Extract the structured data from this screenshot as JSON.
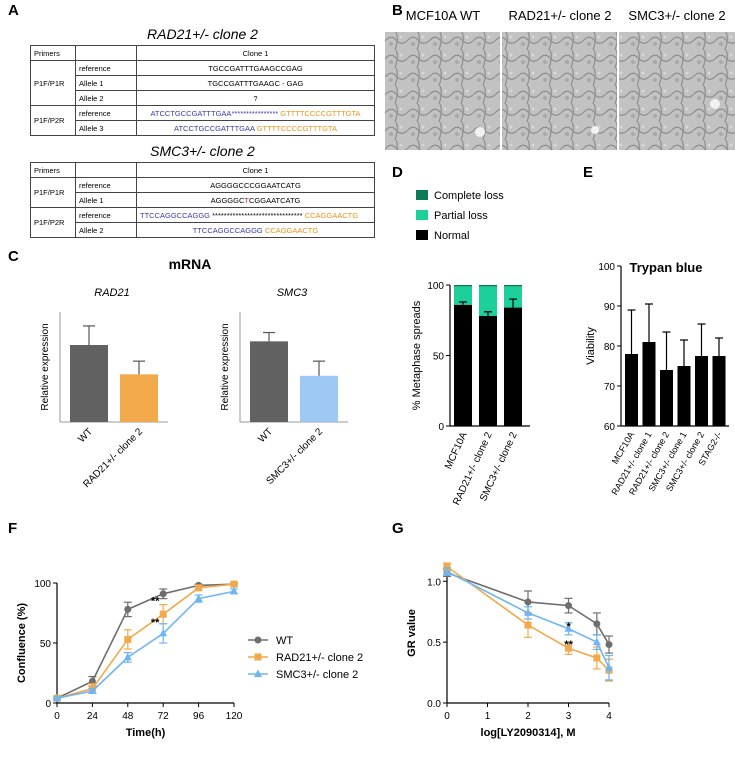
{
  "panels": {
    "A": "A",
    "B": "B",
    "C": "C",
    "D": "D",
    "E": "E",
    "F": "F",
    "G": "G"
  },
  "panelA": {
    "table1": {
      "title": "RAD21+/- clone 2",
      "primers_header": "Primers",
      "clone_header": "Clone 1",
      "group1": "P1F/P1R",
      "group2": "P1F/P2R",
      "rows": [
        {
          "label": "reference",
          "seq": "TGCCGATTTGAAGCCGAG"
        },
        {
          "label": "Allele 1",
          "seq": "TGCCGATTTGAAGC - GAG"
        },
        {
          "label": "Allele 2",
          "seq": "?"
        },
        {
          "label": "reference",
          "seq_blue": "ATCCTGCCGATTTGAA",
          "seq_mid": "****************",
          "seq_orange": "GTTTTCCCCGTTTGTA"
        },
        {
          "label": "Allele 3",
          "seq_blue": "ATCCTGCCGATTTGAA",
          "seq_orange": "GTTTTCCCCGTTTGTA"
        }
      ]
    },
    "table2": {
      "title": "SMC3+/- clone 2",
      "primers_header": "Primers",
      "clone_header": "Clone 1",
      "group1": "P1F/P1R",
      "group2": "P1F/P2R",
      "rows": [
        {
          "label": "reference",
          "seq": "AGGGGCCCGGAATCATG"
        },
        {
          "label": "Allele 1",
          "seq_a": "AGGGGC",
          "seq_red": "T",
          "seq_b": "CGGAATCATG"
        },
        {
          "label": "reference",
          "seq_blue": "TTCCAGGCCAGGG",
          "seq_mid": "*******************************",
          "seq_orange": "CCAGGAACTG"
        },
        {
          "label": "Allele 2",
          "seq_blue": "TTCCAGGCCAGGG",
          "seq_orange": "CCAGGAACTG"
        }
      ]
    }
  },
  "panelB": {
    "labels": [
      "MCF10A WT",
      "RAD21+/- clone 2",
      "SMC3+/- clone 2"
    ]
  },
  "panelC": {
    "title": "mRNA",
    "charts": [
      {
        "type": "bar",
        "gene": "RAD21",
        "ylabel": "Relative expression",
        "categories": [
          "WT",
          "RAD21+/- clone 2"
        ],
        "values": [
          1.05,
          0.65
        ],
        "errors": [
          0.26,
          0.18
        ],
        "colors": [
          "#616161",
          "#f2a94b"
        ],
        "ylim": [
          0,
          1.5
        ]
      },
      {
        "type": "bar",
        "gene": "SMC3",
        "ylabel": "Relative expression",
        "categories": [
          "WT",
          "SMC3+/- clone 2"
        ],
        "values": [
          1.1,
          0.63
        ],
        "errors": [
          0.12,
          0.2
        ],
        "colors": [
          "#616161",
          "#9fc9f5"
        ],
        "ylim": [
          0,
          1.5
        ]
      }
    ]
  },
  "chart_data": [
    {
      "type": "bar",
      "panel": "D",
      "ylabel": "% Metaphase spreads",
      "categories": [
        "MCF10A",
        "RAD21+/- clone 2",
        "SMC3+/- clone 2"
      ],
      "series": [
        {
          "name": "Normal",
          "values": [
            86,
            78,
            84
          ],
          "errors": [
            2,
            3,
            6
          ],
          "color": "#000000"
        },
        {
          "name": "Partial loss",
          "values": [
            13,
            21,
            15
          ],
          "color": "#1dcf9a"
        },
        {
          "name": "Complete loss",
          "values": [
            1,
            1,
            1
          ],
          "color": "#0d7a5a"
        }
      ],
      "yticks": [
        0,
        50,
        100
      ],
      "ylim": [
        0,
        100
      ],
      "legend": "top"
    },
    {
      "type": "bar",
      "panel": "E",
      "title": "Trypan blue",
      "ylabel": "Viability",
      "categories": [
        "MCF10A",
        "RAD21+/- clone 1",
        "RAD21+/- clone 2",
        "SMC3+/- clone 1",
        "SMC3+/- clone 2",
        "STAG2-/-"
      ],
      "values": [
        78,
        81,
        74,
        75,
        77.5,
        77.5
      ],
      "errors": [
        11,
        9.5,
        9.5,
        6.5,
        8,
        4.5
      ],
      "ylim": [
        60,
        100
      ],
      "yticks": [
        60,
        70,
        80,
        90,
        100
      ]
    },
    {
      "type": "line",
      "panel": "F",
      "xlabel": "Time(h)",
      "ylabel": "Confluence (%)",
      "x": [
        0,
        24,
        48,
        72,
        96,
        120
      ],
      "xticks": [
        0,
        24,
        48,
        72,
        96,
        120
      ],
      "yticks": [
        0,
        50,
        100
      ],
      "xlim": [
        0,
        120
      ],
      "ylim": [
        0,
        100
      ],
      "series": [
        {
          "name": "WT",
          "values": [
            4,
            18,
            78,
            91,
            98,
            99
          ],
          "errors": [
            1,
            4,
            6,
            4,
            1,
            1
          ],
          "color": "#6e6e6e",
          "marker": "circle"
        },
        {
          "name": "RAD21+/- clone 2",
          "values": [
            4,
            12,
            53,
            74,
            96,
            99
          ],
          "errors": [
            1,
            4,
            8,
            8,
            2,
            1
          ],
          "color": "#f2a94b",
          "marker": "square"
        },
        {
          "name": "SMC3+/- clone 2",
          "values": [
            4,
            10,
            38,
            58,
            87,
            93
          ],
          "errors": [
            1,
            2,
            4,
            8,
            3,
            2
          ],
          "color": "#6fb5f2",
          "marker": "triangle"
        }
      ],
      "annotations": [
        {
          "x": 72,
          "y": 82,
          "text": "**"
        },
        {
          "x": 72,
          "y": 64,
          "text": "**"
        }
      ],
      "legend": "right"
    },
    {
      "type": "line",
      "panel": "G",
      "xlabel": "log[LY2090314], M",
      "ylabel": "GR value",
      "x": [
        0,
        2,
        3,
        3.7,
        4
      ],
      "xticks": [
        0,
        1,
        2,
        3,
        4
      ],
      "yticks": [
        0.0,
        0.5,
        1.0
      ],
      "xlim": [
        0,
        4
      ],
      "ylim": [
        0,
        1.15
      ],
      "series": [
        {
          "name": "WT",
          "values": [
            1.07,
            0.83,
            0.8,
            0.65,
            0.48
          ],
          "errors": [
            0.03,
            0.09,
            0.06,
            0.09,
            0.07
          ],
          "color": "#6e6e6e",
          "marker": "circle"
        },
        {
          "name": "RAD21+/- clone 2",
          "values": [
            1.12,
            0.64,
            0.45,
            0.37,
            0.27
          ],
          "errors": [
            0.03,
            0.1,
            0.05,
            0.09,
            0.09
          ],
          "color": "#f2a94b",
          "marker": "square"
        },
        {
          "name": "SMC3+/- clone 2",
          "values": [
            1.08,
            0.74,
            0.61,
            0.5,
            0.29
          ],
          "errors": [
            0.03,
            0.05,
            0.05,
            0.06,
            0.1
          ],
          "color": "#6fb5f2",
          "marker": "triangle"
        }
      ],
      "annotations": [
        {
          "x": 3.2,
          "y": 0.6,
          "text": "*"
        },
        {
          "x": 3.2,
          "y": 0.45,
          "text": "**"
        }
      ]
    }
  ]
}
